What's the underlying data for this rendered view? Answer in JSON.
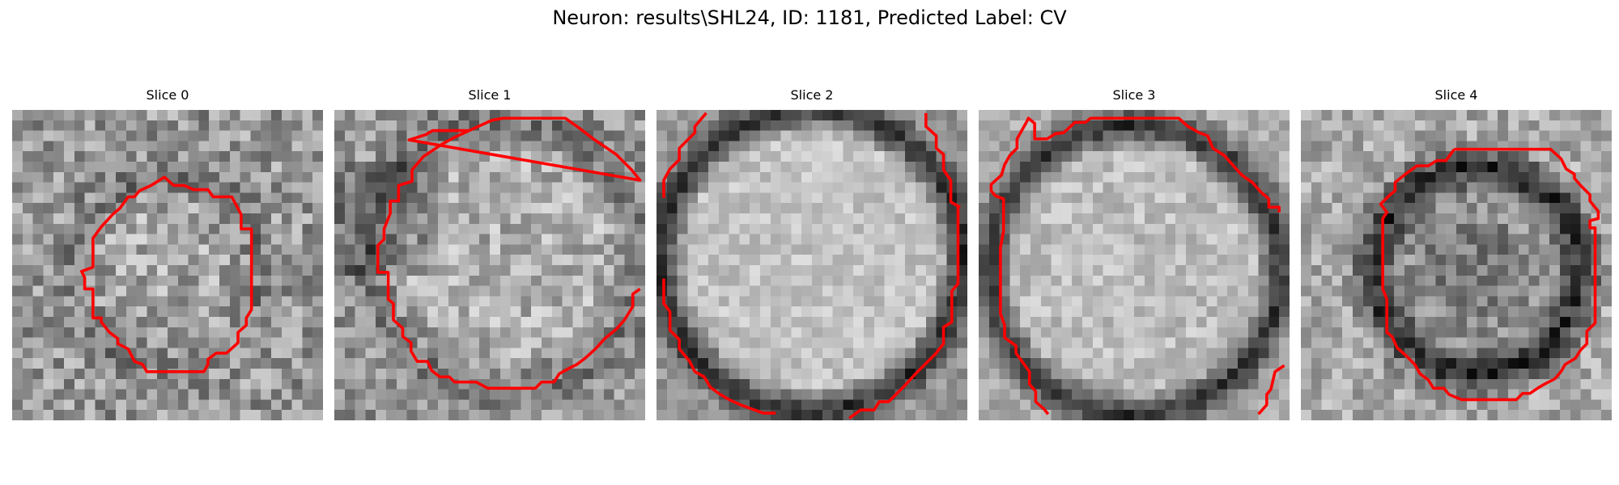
{
  "figure": {
    "title": "Neuron: results\\SHL24, ID: 1181, Predicted Label: CV"
  },
  "panels": [
    {
      "title": "Slice 0",
      "contour_color": "#ff0000",
      "pattern": "small-circle-noise"
    },
    {
      "title": "Slice 1",
      "contour_color": "#ff0000",
      "pattern": "large-octagon-noise"
    },
    {
      "title": "Slice 2",
      "contour_color": "#ff0000",
      "pattern": "bright-disc-dark-ring"
    },
    {
      "title": "Slice 3",
      "contour_color": "#ff0000",
      "pattern": "bright-disc-dark-ring-2"
    },
    {
      "title": "Slice 4",
      "contour_color": "#ff0000",
      "pattern": "dark-ring-octagon"
    }
  ]
}
